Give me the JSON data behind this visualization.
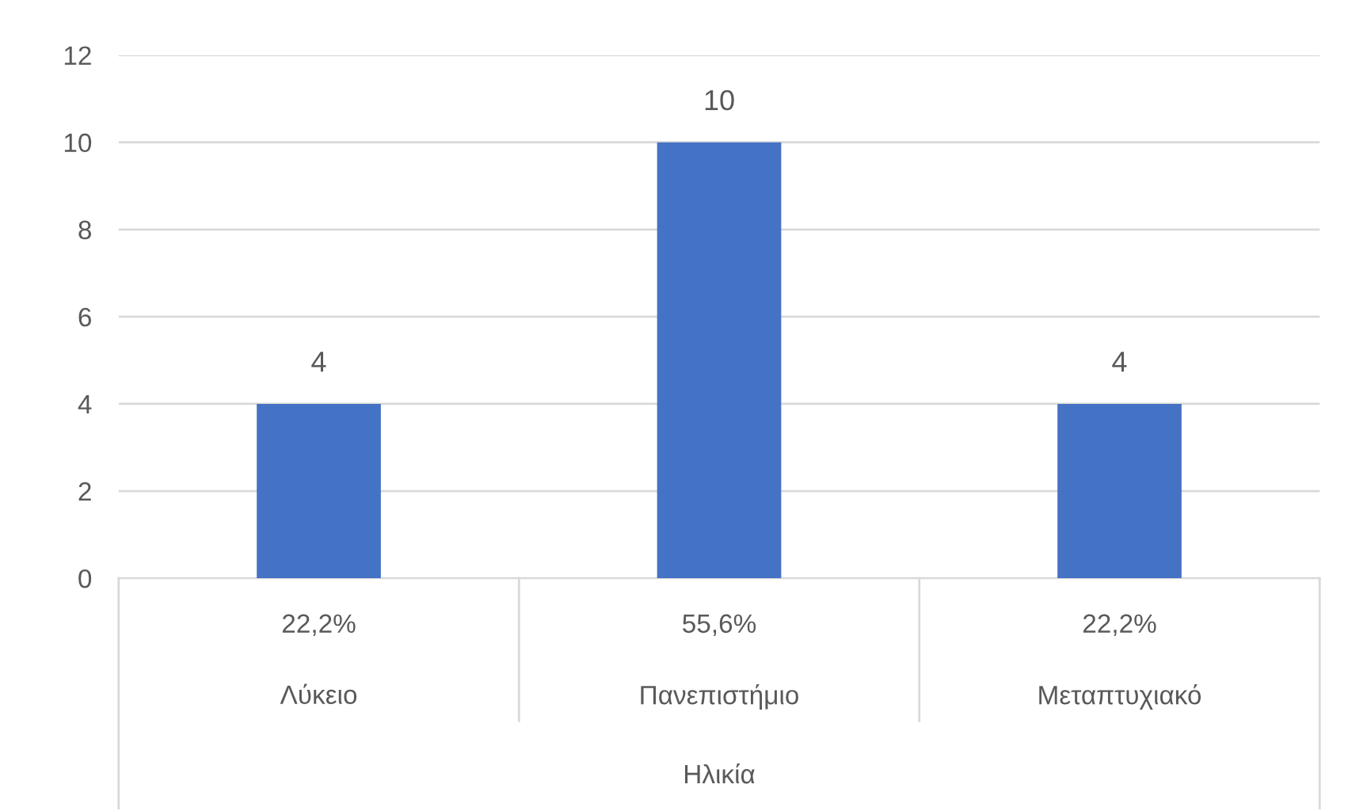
{
  "chart_data": {
    "type": "bar",
    "xlabel": "Ηλικία",
    "categories": [
      "Λύκειο",
      "Πανεπιστήμιο",
      "Μεταπτυχιακό"
    ],
    "values": [
      4,
      10,
      4
    ],
    "color": "#4472c4",
    "ylim": [
      0,
      12
    ],
    "yticks": [
      0,
      2,
      4,
      6,
      8,
      10,
      12
    ],
    "grid": "y",
    "data_labels": true,
    "annotations": [
      "22,2%",
      "55,6%",
      "22,2%"
    ]
  }
}
